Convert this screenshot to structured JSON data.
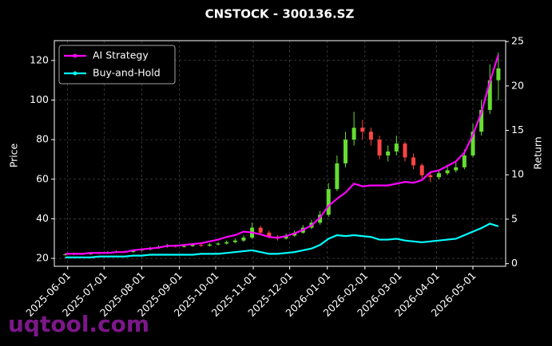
{
  "chart_data": {
    "type": "candlestick",
    "title": "CNSTOCK - 300136.SZ",
    "y_label": "Price",
    "y2_label": "Return",
    "watermark": "uqtool.com",
    "x": [
      "2025-05-30",
      "2025-06-06",
      "2025-06-13",
      "2025-06-20",
      "2025-06-27",
      "2025-07-04",
      "2025-07-11",
      "2025-07-18",
      "2025-07-25",
      "2025-08-01",
      "2025-08-08",
      "2025-08-15",
      "2025-08-22",
      "2025-08-29",
      "2025-09-05",
      "2025-09-12",
      "2025-09-19",
      "2025-09-26",
      "2025-10-03",
      "2025-10-10",
      "2025-10-17",
      "2025-10-24",
      "2025-10-31",
      "2025-11-07",
      "2025-11-14",
      "2025-11-21",
      "2025-11-28",
      "2025-12-05",
      "2025-12-12",
      "2025-12-19",
      "2025-12-26",
      "2026-01-02",
      "2026-01-09",
      "2026-01-16",
      "2026-01-23",
      "2026-01-30",
      "2026-02-06",
      "2026-02-13",
      "2026-02-20",
      "2026-02-27",
      "2026-03-06",
      "2026-03-13",
      "2026-03-20",
      "2026-03-27",
      "2026-04-03",
      "2026-04-10",
      "2026-04-17",
      "2026-04-24",
      "2026-05-01",
      "2026-05-08",
      "2026-05-15",
      "2026-05-22"
    ],
    "open": [
      21.8,
      22.0,
      22.3,
      22.1,
      22.6,
      22.8,
      23.0,
      23.4,
      23.2,
      24.0,
      24.5,
      25.2,
      25.8,
      26.5,
      26.0,
      26.2,
      26.8,
      26.4,
      27.0,
      27.5,
      28.2,
      29.0,
      30.5,
      35.5,
      33.0,
      31.0,
      30.0,
      31.5,
      33.0,
      35.5,
      38.0,
      42.0,
      55.0,
      68.0,
      80.0,
      86.0,
      84.0,
      80.0,
      72.0,
      74.0,
      78.0,
      71.0,
      67.0,
      62.0,
      61.0,
      63.0,
      64.5,
      66.0,
      72.0,
      84.0,
      95.0,
      110.0
    ],
    "high": [
      22.6,
      22.9,
      22.8,
      23.1,
      23.3,
      23.6,
      24.0,
      23.9,
      24.6,
      25.1,
      25.8,
      26.5,
      27.3,
      27.0,
      26.9,
      27.5,
      27.3,
      27.7,
      28.2,
      29.0,
      30.0,
      31.6,
      38.0,
      36.5,
      34.0,
      31.8,
      32.5,
      34.2,
      36.8,
      39.5,
      44.0,
      58.0,
      72.0,
      84.0,
      94.0,
      90.0,
      86.0,
      82.0,
      77.0,
      82.0,
      79.0,
      73.0,
      68.0,
      64.0,
      65.0,
      67.0,
      68.5,
      75.0,
      88.0,
      100.0,
      118.0,
      124.0
    ],
    "low": [
      21.4,
      21.6,
      21.7,
      21.8,
      22.2,
      22.4,
      22.7,
      22.8,
      22.9,
      23.6,
      24.1,
      24.8,
      25.4,
      25.4,
      25.5,
      25.8,
      25.8,
      26.0,
      26.5,
      27.0,
      27.6,
      28.3,
      29.8,
      32.0,
      30.2,
      29.0,
      29.5,
      30.8,
      32.5,
      34.8,
      37.0,
      41.0,
      54.0,
      66.0,
      77.0,
      80.0,
      77.0,
      70.0,
      69.0,
      72.0,
      69.0,
      65.0,
      60.0,
      58.5,
      60.0,
      62.0,
      63.5,
      65.0,
      71.0,
      82.0,
      93.0,
      100.0
    ],
    "close": [
      22.0,
      22.3,
      22.1,
      22.6,
      22.8,
      23.0,
      23.4,
      23.2,
      24.0,
      24.5,
      25.2,
      25.8,
      26.5,
      26.0,
      26.2,
      26.8,
      26.4,
      27.0,
      27.5,
      28.2,
      29.0,
      30.5,
      35.5,
      33.0,
      31.0,
      30.0,
      31.5,
      33.0,
      35.5,
      38.0,
      42.0,
      55.0,
      68.0,
      80.0,
      86.0,
      84.0,
      80.0,
      72.0,
      74.0,
      78.0,
      71.0,
      67.0,
      62.0,
      61.0,
      63.0,
      64.5,
      66.0,
      72.0,
      84.0,
      95.0,
      110.0,
      116.0
    ],
    "up_color": "#66dd33",
    "down_color": "#ff4444",
    "series": [
      {
        "name": "AI Strategy",
        "color": "#ff00ff",
        "axis": "y2",
        "values": [
          1.1,
          1.1,
          1.1,
          1.2,
          1.2,
          1.2,
          1.3,
          1.3,
          1.5,
          1.6,
          1.7,
          1.8,
          2.0,
          2.0,
          2.1,
          2.2,
          2.3,
          2.5,
          2.7,
          3.0,
          3.2,
          3.6,
          3.5,
          3.3,
          3.0,
          2.9,
          3.1,
          3.4,
          3.8,
          4.3,
          5.2,
          6.5,
          7.3,
          8.0,
          9.0,
          8.7,
          8.8,
          8.8,
          8.8,
          9.0,
          9.2,
          9.1,
          9.4,
          10.3,
          10.5,
          11.0,
          11.5,
          12.5,
          14.5,
          17.0,
          20.5,
          23.5
        ]
      },
      {
        "name": "Buy-and-Hold",
        "color": "#00ffff",
        "axis": "y2",
        "values": [
          0.7,
          0.7,
          0.7,
          0.7,
          0.8,
          0.8,
          0.8,
          0.8,
          0.9,
          0.9,
          1.0,
          1.0,
          1.0,
          1.0,
          1.0,
          1.0,
          1.1,
          1.1,
          1.1,
          1.2,
          1.3,
          1.4,
          1.5,
          1.3,
          1.1,
          1.1,
          1.2,
          1.3,
          1.5,
          1.7,
          2.1,
          2.8,
          3.2,
          3.1,
          3.2,
          3.1,
          3.0,
          2.7,
          2.7,
          2.8,
          2.6,
          2.5,
          2.4,
          2.5,
          2.6,
          2.7,
          2.8,
          3.2,
          3.6,
          4.0,
          4.5,
          4.2
        ]
      }
    ],
    "xlim": [
      "2025-05-21",
      "2026-05-28"
    ],
    "xticks": [
      "2025-06-01",
      "2025-07-01",
      "2025-08-01",
      "2025-09-01",
      "2025-10-01",
      "2025-11-01",
      "2025-12-01",
      "2026-01-01",
      "2026-02-01",
      "2026-03-01",
      "2026-04-01",
      "2026-05-01"
    ],
    "ylim": [
      16,
      130
    ],
    "yticks": [
      20,
      40,
      60,
      80,
      100,
      120
    ],
    "y2lim": [
      -0.3,
      25.1
    ],
    "y2ticks": [
      0,
      5,
      10,
      15,
      20,
      25
    ],
    "grid": true,
    "legend": "upper left"
  }
}
